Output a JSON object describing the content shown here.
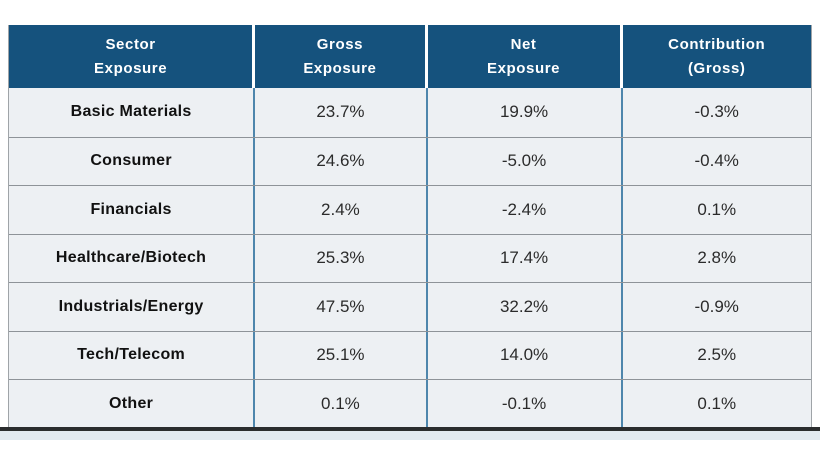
{
  "colors": {
    "header_bg": "#15527D",
    "header_text": "#FFFFFF",
    "row_bg": "#EDF0F3",
    "row_divider": "#8E9398",
    "col_separator": "#4E86AC",
    "bottom_bar": "#2B2D2E",
    "shadow_strip": "#E2EAF0",
    "label_text": "#111111",
    "value_text": "#2B2B2B"
  },
  "table": {
    "columns": [
      {
        "id": "sector",
        "line1": "Sector",
        "line2": "Exposure"
      },
      {
        "id": "gross",
        "line1": "Gross",
        "line2": "Exposure"
      },
      {
        "id": "net",
        "line1": "Net",
        "line2": "Exposure"
      },
      {
        "id": "contribution",
        "line1": "Contribution",
        "line2": "(Gross)"
      }
    ],
    "rows": [
      {
        "sector": "Basic Materials",
        "gross": "23.7%",
        "net": "19.9%",
        "contribution": "-0.3%"
      },
      {
        "sector": "Consumer",
        "gross": "24.6%",
        "net": "-5.0%",
        "contribution": "-0.4%"
      },
      {
        "sector": "Financials",
        "gross": "2.4%",
        "net": "-2.4%",
        "contribution": "0.1%"
      },
      {
        "sector": "Healthcare/Biotech",
        "gross": "25.3%",
        "net": "17.4%",
        "contribution": "2.8%"
      },
      {
        "sector": "Industrials/Energy",
        "gross": "47.5%",
        "net": "32.2%",
        "contribution": "-0.9%"
      },
      {
        "sector": "Tech/Telecom",
        "gross": "25.1%",
        "net": "14.0%",
        "contribution": "2.5%"
      },
      {
        "sector": "Other",
        "gross": "0.1%",
        "net": "-0.1%",
        "contribution": "0.1%"
      }
    ]
  },
  "chart_data": {
    "type": "table",
    "title": "Sector Exposure",
    "columns": [
      "Sector Exposure",
      "Gross Exposure",
      "Net Exposure",
      "Contribution (Gross)"
    ],
    "rows": [
      [
        "Basic Materials",
        "23.7%",
        "19.9%",
        "-0.3%"
      ],
      [
        "Consumer",
        "24.6%",
        "-5.0%",
        "-0.4%"
      ],
      [
        "Financials",
        "2.4%",
        "-2.4%",
        "0.1%"
      ],
      [
        "Healthcare/Biotech",
        "25.3%",
        "17.4%",
        "2.8%"
      ],
      [
        "Industrials/Energy",
        "47.5%",
        "32.2%",
        "-0.9%"
      ],
      [
        "Tech/Telecom",
        "25.1%",
        "14.0%",
        "2.5%"
      ],
      [
        "Other",
        "0.1%",
        "-0.1%",
        "0.1%"
      ]
    ]
  }
}
